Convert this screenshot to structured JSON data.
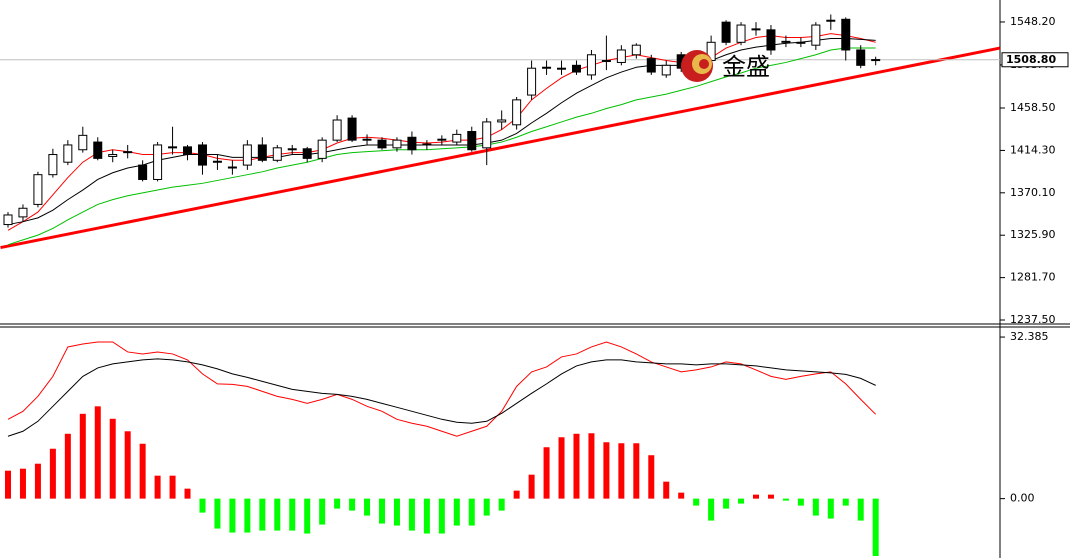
{
  "chart_data": {
    "type": "candlestick",
    "logo_text": "金盛",
    "price_pane": {
      "ylim": [
        1232.3,
        1571.1
      ],
      "yticks": [
        {
          "value": 1548.2,
          "label": "1548.20"
        },
        {
          "value": 1503.4,
          "label": "1503.40"
        },
        {
          "value": 1458.5,
          "label": "1458.50"
        },
        {
          "value": 1414.3,
          "label": "1414.30"
        },
        {
          "value": 1370.1,
          "label": "1370.10"
        },
        {
          "value": 1325.9,
          "label": "1325.90"
        },
        {
          "value": 1281.7,
          "label": "1281.70"
        },
        {
          "value": 1237.5,
          "label": "1237.50"
        }
      ],
      "current_price": {
        "value": 1508.8,
        "label": "1508.80"
      },
      "up_color": "#ffffff",
      "down_color": "#000000",
      "candles": {
        "open": [
          1337,
          1345,
          1358,
          1389,
          1402,
          1415,
          1423,
          1408,
          1412,
          1399,
          1384,
          1418,
          1418,
          1420,
          1402,
          1396,
          1399,
          1420,
          1404,
          1415,
          1416,
          1406,
          1425,
          1448,
          1425,
          1425,
          1417,
          1428,
          1420,
          1425,
          1423,
          1434,
          1417,
          1444,
          1441,
          1472,
          1500,
          1500,
          1503,
          1493,
          1508,
          1506,
          1514,
          1510,
          1493,
          1514,
          1508,
          1508,
          1548,
          1527,
          1540,
          1540,
          1527,
          1527,
          1524,
          1550,
          1551,
          1519,
          1508
        ],
        "high": [
          1350,
          1358,
          1392,
          1416,
          1425,
          1439,
          1428,
          1415,
          1420,
          1404,
          1423,
          1439,
          1420,
          1423,
          1410,
          1404,
          1425,
          1428,
          1420,
          1420,
          1418,
          1428,
          1451,
          1451,
          1431,
          1428,
          1428,
          1434,
          1425,
          1430,
          1436,
          1439,
          1448,
          1456,
          1470,
          1508,
          1508,
          1508,
          1508,
          1519,
          1534,
          1524,
          1526,
          1514,
          1508,
          1517,
          1514,
          1534,
          1550,
          1548,
          1548,
          1545,
          1534,
          1532,
          1548,
          1556,
          1553,
          1524,
          1512
        ],
        "low": [
          1334,
          1340,
          1355,
          1386,
          1399,
          1412,
          1404,
          1402,
          1406,
          1382,
          1382,
          1410,
          1404,
          1389,
          1394,
          1389,
          1394,
          1402,
          1402,
          1410,
          1402,
          1402,
          1423,
          1423,
          1420,
          1415,
          1413,
          1410,
          1415,
          1420,
          1420,
          1413,
          1399,
          1436,
          1436,
          1467,
          1493,
          1493,
          1493,
          1488,
          1498,
          1503,
          1510,
          1493,
          1490,
          1496,
          1503,
          1503,
          1524,
          1524,
          1534,
          1514,
          1522,
          1522,
          1519,
          1540,
          1508,
          1500,
          1503
        ],
        "close": [
          1347,
          1354,
          1389,
          1410,
          1420,
          1430,
          1406,
          1410,
          1413,
          1384,
          1420,
          1417,
          1410,
          1399,
          1403,
          1397,
          1420,
          1404,
          1417,
          1416,
          1406,
          1425,
          1446,
          1425,
          1426,
          1417,
          1425,
          1415,
          1421,
          1426,
          1431,
          1415,
          1444,
          1446,
          1467,
          1500,
          1501,
          1499,
          1496,
          1514,
          1507,
          1519,
          1524,
          1496,
          1503,
          1500,
          1507,
          1527,
          1527,
          1545,
          1541,
          1519,
          1528,
          1526,
          1545,
          1549,
          1519,
          1503,
          1509
        ]
      },
      "moving_averages": [
        {
          "color": "#ff0000",
          "values": [
            1331,
            1340,
            1350,
            1368,
            1386,
            1402,
            1412,
            1415,
            1413,
            1410,
            1410,
            1412,
            1412,
            1410,
            1406,
            1404,
            1404,
            1407,
            1410,
            1412,
            1412,
            1415,
            1422,
            1427,
            1428,
            1427,
            1425,
            1423,
            1422,
            1423,
            1425,
            1425,
            1428,
            1436,
            1448,
            1467,
            1479,
            1490,
            1498,
            1503,
            1508,
            1511,
            1514,
            1511,
            1508,
            1506,
            1506,
            1511,
            1521,
            1527,
            1532,
            1534,
            1532,
            1532,
            1533,
            1536,
            1534,
            1531,
            1527
          ]
        },
        {
          "color": "#000000",
          "values": [
            1337,
            1340,
            1344,
            1352,
            1363,
            1373,
            1384,
            1391,
            1396,
            1399,
            1404,
            1407,
            1410,
            1410,
            1410,
            1407,
            1407,
            1407,
            1407,
            1410,
            1410,
            1412,
            1415,
            1418,
            1420,
            1420,
            1420,
            1420,
            1420,
            1420,
            1420,
            1420,
            1422,
            1425,
            1432,
            1443,
            1453,
            1464,
            1474,
            1482,
            1490,
            1496,
            1501,
            1503,
            1503,
            1503,
            1505,
            1508,
            1514,
            1519,
            1522,
            1524,
            1526,
            1527,
            1529,
            1531,
            1531,
            1530,
            1529
          ]
        },
        {
          "color": "#00c000",
          "values": [
            1316,
            1321,
            1326,
            1333,
            1342,
            1350,
            1358,
            1363,
            1367,
            1370,
            1373,
            1376,
            1378,
            1380,
            1383,
            1386,
            1389,
            1392,
            1396,
            1399,
            1402,
            1406,
            1410,
            1412,
            1413,
            1414,
            1415,
            1415,
            1415,
            1416,
            1417,
            1418,
            1420,
            1423,
            1428,
            1434,
            1439,
            1444,
            1449,
            1453,
            1458,
            1462,
            1467,
            1470,
            1473,
            1477,
            1481,
            1486,
            1491,
            1495,
            1500,
            1503,
            1506,
            1510,
            1514,
            1519,
            1521,
            1521,
            1521
          ]
        }
      ],
      "trendline": {
        "color": "#ff0000",
        "start": {
          "index": -0.5,
          "price": 1313
        },
        "end": {
          "index": 66.3,
          "price": 1521
        }
      }
    },
    "macd_pane": {
      "ylim": [
        -11.9,
        34.4
      ],
      "yticks": [
        32.385,
        {
          "value": 0,
          "label": "0.00"
        }
      ],
      "histogram": {
        "positive_color": "#ff0000",
        "negative_color": "#00ff00",
        "values": [
          5.6,
          6,
          7,
          10,
          13,
          17,
          18.5,
          16,
          13.5,
          11,
          4.6,
          4.6,
          2,
          -2.8,
          -6,
          -6.8,
          -6.8,
          -6.4,
          -6.4,
          -6.4,
          -7,
          -5.2,
          -2,
          -2.4,
          -3.4,
          -5,
          -5.4,
          -6.4,
          -7,
          -7,
          -5.4,
          -5.4,
          -3.4,
          -2.4,
          1.6,
          4.8,
          10.3,
          12.3,
          13,
          13.1,
          11.3,
          11.1,
          11.1,
          8.7,
          3.4,
          1.2,
          -1.4,
          -4.4,
          -2,
          -1,
          0.8,
          0.8,
          -0.4,
          -1.4,
          -3.4,
          -4,
          -1.4,
          -4.4,
          -11.5
        ]
      },
      "lines": [
        {
          "color": "#ff0000",
          "values": [
            15.9,
            17.5,
            20.5,
            24.5,
            30.4,
            31,
            31.4,
            31.4,
            29.4,
            29,
            29.4,
            29,
            27.8,
            25,
            23,
            22.9,
            22.5,
            21.5,
            20.5,
            19.9,
            19.1,
            19.9,
            20.9,
            19.9,
            18.5,
            17.5,
            15.9,
            15.1,
            14.5,
            13.5,
            12.5,
            13.5,
            14.5,
            17.5,
            22.5,
            25.4,
            26.4,
            28.4,
            29,
            30.4,
            31.4,
            30.4,
            29,
            27.4,
            26.4,
            25.4,
            25.8,
            26.4,
            27.4,
            27,
            25.8,
            24.5,
            23.9,
            24.5,
            25,
            25.4,
            23,
            19.9,
            16.9
          ]
        },
        {
          "color": "#000000",
          "values": [
            12.5,
            13.5,
            15.5,
            18.5,
            21.5,
            24.5,
            26.2,
            27,
            27.4,
            27.8,
            28,
            27.8,
            27.4,
            26.8,
            26,
            25,
            24.3,
            23.5,
            22.7,
            21.9,
            21.5,
            21.1,
            20.9,
            20.5,
            19.9,
            19.1,
            18.3,
            17.5,
            16.7,
            15.9,
            15.3,
            15.1,
            15.5,
            17.1,
            19.1,
            21.1,
            23,
            25,
            26.6,
            27.4,
            27.8,
            27.8,
            27.4,
            27.2,
            27,
            27,
            26.8,
            27,
            27,
            26.8,
            26.6,
            26.2,
            25.8,
            25.6,
            25.4,
            25.2,
            24.9,
            24.1,
            22.7
          ]
        }
      ]
    }
  }
}
